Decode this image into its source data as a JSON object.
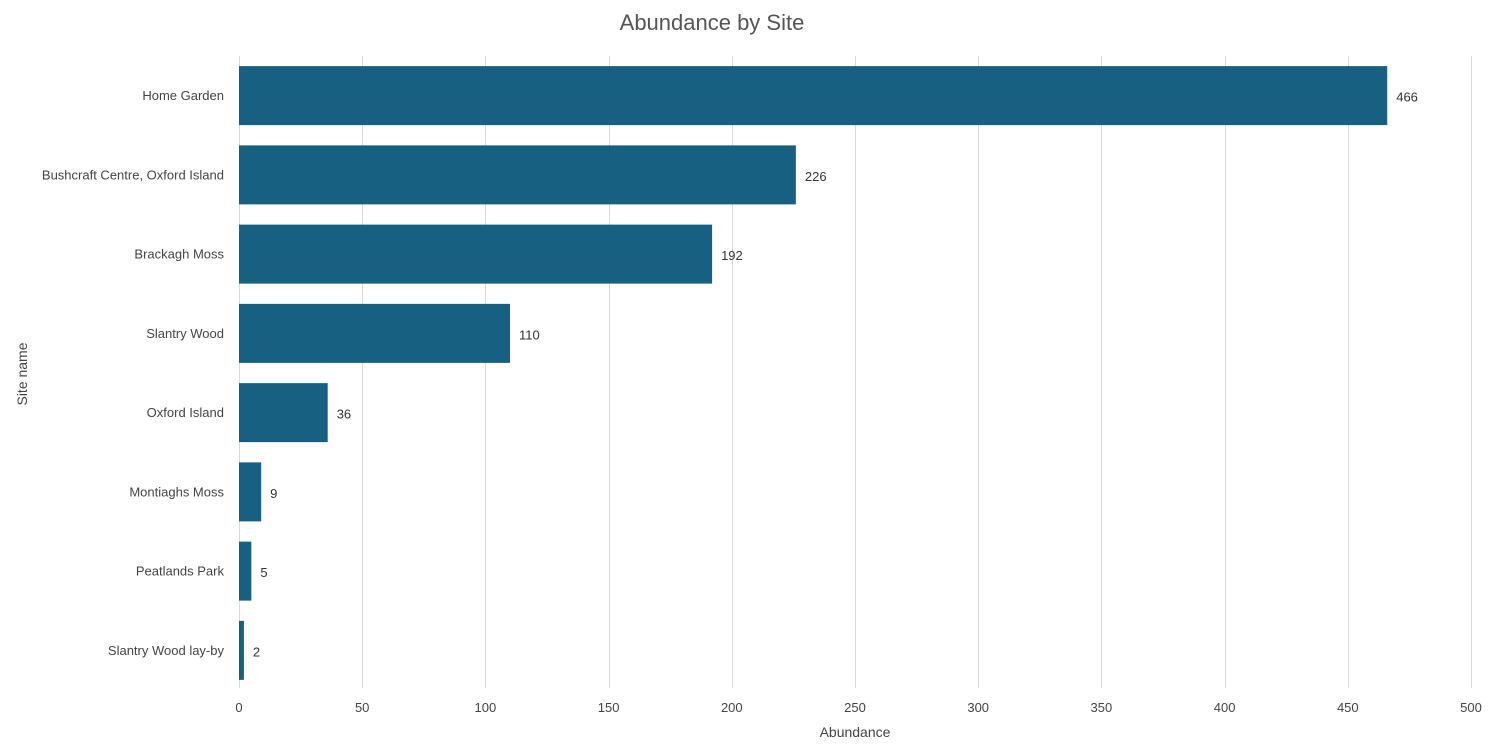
{
  "chart_data": {
    "type": "bar",
    "orientation": "horizontal",
    "title": "Abundance by Site",
    "xlabel": "Abundance",
    "ylabel": "Site name",
    "categories": [
      "Home Garden",
      "Bushcraft Centre, Oxford Island",
      "Brackagh Moss",
      "Slantry Wood",
      "Oxford Island",
      "Montiaghs Moss",
      "Peatlands Park",
      "Slantry Wood lay-by"
    ],
    "values": [
      466,
      226,
      192,
      110,
      36,
      9,
      5,
      2
    ],
    "xlim": [
      0,
      500
    ],
    "xticks": [
      0,
      50,
      100,
      150,
      200,
      250,
      300,
      350,
      400,
      450,
      500
    ],
    "grid": true,
    "data_labels": true,
    "bar_color": "#176082"
  }
}
